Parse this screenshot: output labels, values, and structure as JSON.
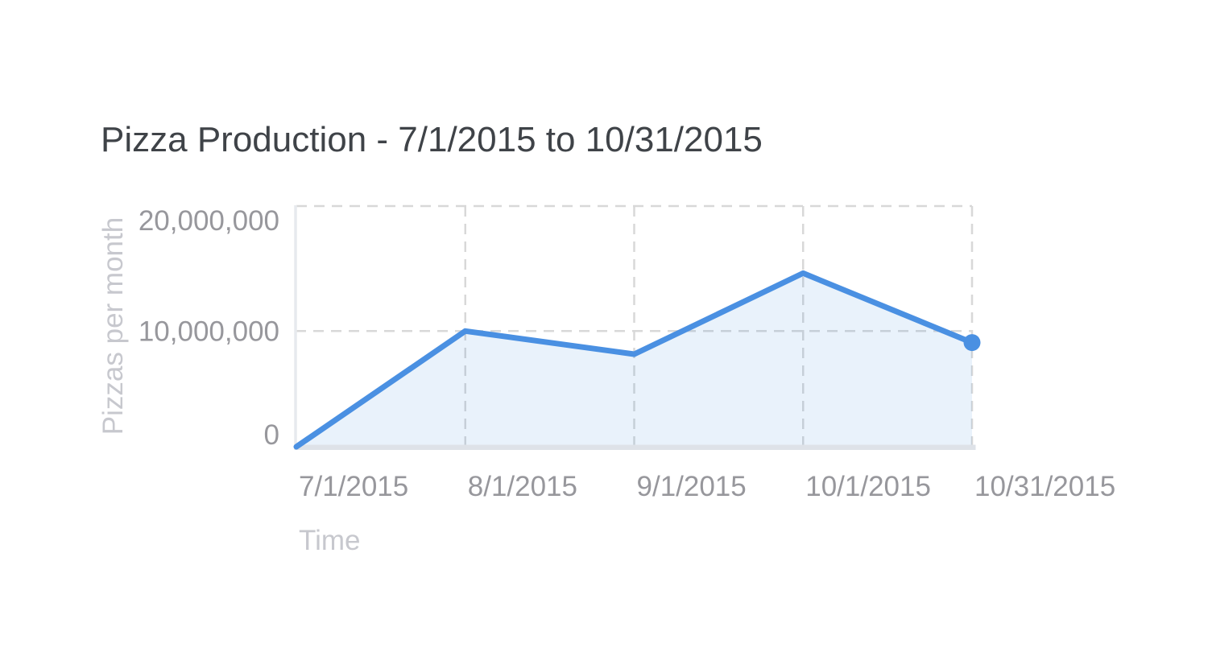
{
  "title": "Pizza Production - 7/1/2015 to 10/31/2015",
  "chart_data": {
    "type": "area",
    "title": "Pizza Production - 7/1/2015 to 10/31/2015",
    "xlabel": "Time",
    "ylabel": "Pizzas per month",
    "x": [
      "7/1/2015",
      "8/1/2015",
      "9/1/2015",
      "10/1/2015",
      "10/31/2015"
    ],
    "series": [
      {
        "name": "Pizzas per month",
        "values": [
          0,
          10000000,
          8000000,
          15000000,
          9000000
        ]
      }
    ],
    "y_ticks": [
      0,
      10000000,
      20000000
    ],
    "y_tick_labels": [
      "0",
      "10,000,000",
      "20,000,000"
    ],
    "ylim": [
      0,
      20800000
    ],
    "grid": "dashed",
    "legend": "none",
    "marker": "last-point-only",
    "background": "#ffffff",
    "colors": {
      "line": "#4a90e2",
      "fill": "rgba(74,144,226,0.12)",
      "grid": "#d8d8d8",
      "axis_band": "#dee2e8",
      "axis_line": "#e7eaee",
      "tick_label": "#97979c",
      "axis_title": "#c7c8ce",
      "title": "#3f4348"
    }
  }
}
